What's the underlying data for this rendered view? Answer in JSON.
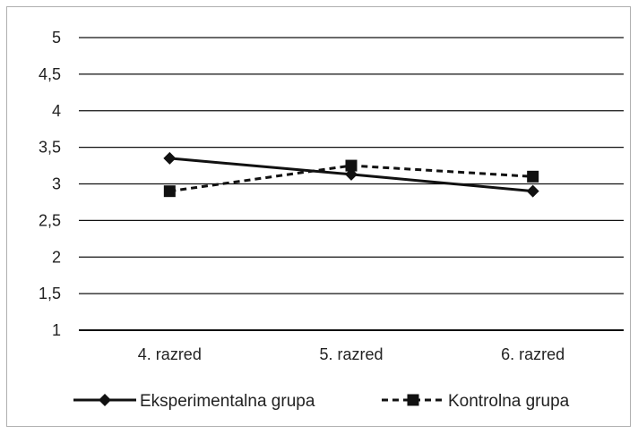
{
  "chart_data": {
    "type": "line",
    "title": "",
    "xlabel": "",
    "ylabel": "",
    "categories": [
      "4. razred",
      "5. razred",
      "6. razred"
    ],
    "ylim": [
      1,
      5
    ],
    "yticks": [
      "1",
      "1,5",
      "2",
      "2,5",
      "3",
      "3,5",
      "4",
      "4,5",
      "5"
    ],
    "ytick_values": [
      1,
      1.5,
      2,
      2.5,
      3,
      3.5,
      4,
      4.5,
      5
    ],
    "grid": true,
    "legend_position": "bottom",
    "series": [
      {
        "name": "Eksperimentalna grupa",
        "values": [
          3.35,
          3.13,
          2.9
        ],
        "marker": "diamond",
        "line": "solid",
        "color": "#111111"
      },
      {
        "name": "Kontrolna grupa",
        "values": [
          2.9,
          3.25,
          3.1
        ],
        "marker": "square",
        "line": "dashed",
        "color": "#111111"
      }
    ]
  }
}
